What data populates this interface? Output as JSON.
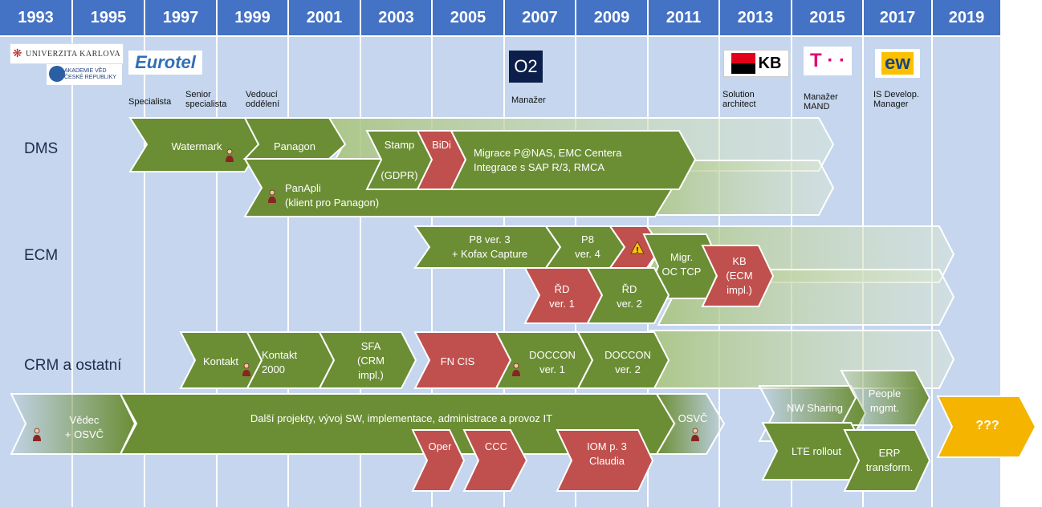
{
  "years": [
    "1993",
    "1995",
    "1997",
    "1999",
    "2001",
    "2003",
    "2005",
    "2007",
    "2009",
    "2011",
    "2013",
    "2015",
    "2017",
    "2019"
  ],
  "rows": {
    "dms": "DMS",
    "ecm": "ECM",
    "crm": "CRM a ostatní"
  },
  "logos": {
    "karlova": "UNIVERZITA KARLOVA",
    "akademie_line1": "AKADEMIE VĚD",
    "akademie_line2": "ČESKÉ REPUBLIKY",
    "eurotel": "Eurotel",
    "o2": "O2",
    "kb": "KB",
    "tmobile": "T · ·",
    "ew": "ew"
  },
  "roles": {
    "specialista": "Specialista",
    "senior": "Senior\nspecialista",
    "vedouci": "Vedoucí\noddělení",
    "manazer_o2": "Manažer",
    "solution": "Solution\narchitect",
    "manazer_mand": "Manažer\nMAND",
    "is_develop": "IS Develop.\nManager"
  },
  "dms": {
    "watermark": "Watermark",
    "panagon": "Panagon",
    "stamp": "Stamp",
    "gdpr": "(GDPR)",
    "bidi": "BiDi",
    "migrace": "Migrace P@NAS, EMC Centera\nIntegrace s SAP R/3, RMCA",
    "panapli": "PanApli\n(klient pro Panagon)"
  },
  "ecm": {
    "p8v3": "P8 ver. 3\n+ Kofax Capture",
    "p8v4": "P8\nver. 4",
    "migr": "Migr.\nOC TCP",
    "kb": "KB\n(ECM\nimpl.)",
    "rd1": "ŘD\nver. 1",
    "rd2": "ŘD\nver. 2"
  },
  "crm": {
    "kontakt": "Kontakt",
    "kontakt2000": "Kontakt\n2000",
    "sfa": "SFA\n(CRM\nimpl.)",
    "fncis": "FN CIS",
    "docconv1": "DOCCON\nver. 1",
    "docconv2": "DOCCON\nver. 2"
  },
  "other": {
    "vedec": "Vědec\n+ OSVČ",
    "dalsi": "Další projekty, vývoj SW, implementace, administrace a provoz  IT",
    "osvc": "OSVČ",
    "oper": "Oper",
    "ccc": "CCC",
    "iom": "IOM p. 3\nClaudia",
    "nwsharing": "NW Sharing",
    "people": "People\nmgmt.",
    "lte": "LTE rollout",
    "erp": "ERP\ntransform.",
    "future": "???"
  },
  "colors": {
    "header": "#4472c4",
    "column": "#c5d6ee",
    "green": "#6b8e35",
    "red": "#c0504d",
    "gold": "#f5b400"
  }
}
